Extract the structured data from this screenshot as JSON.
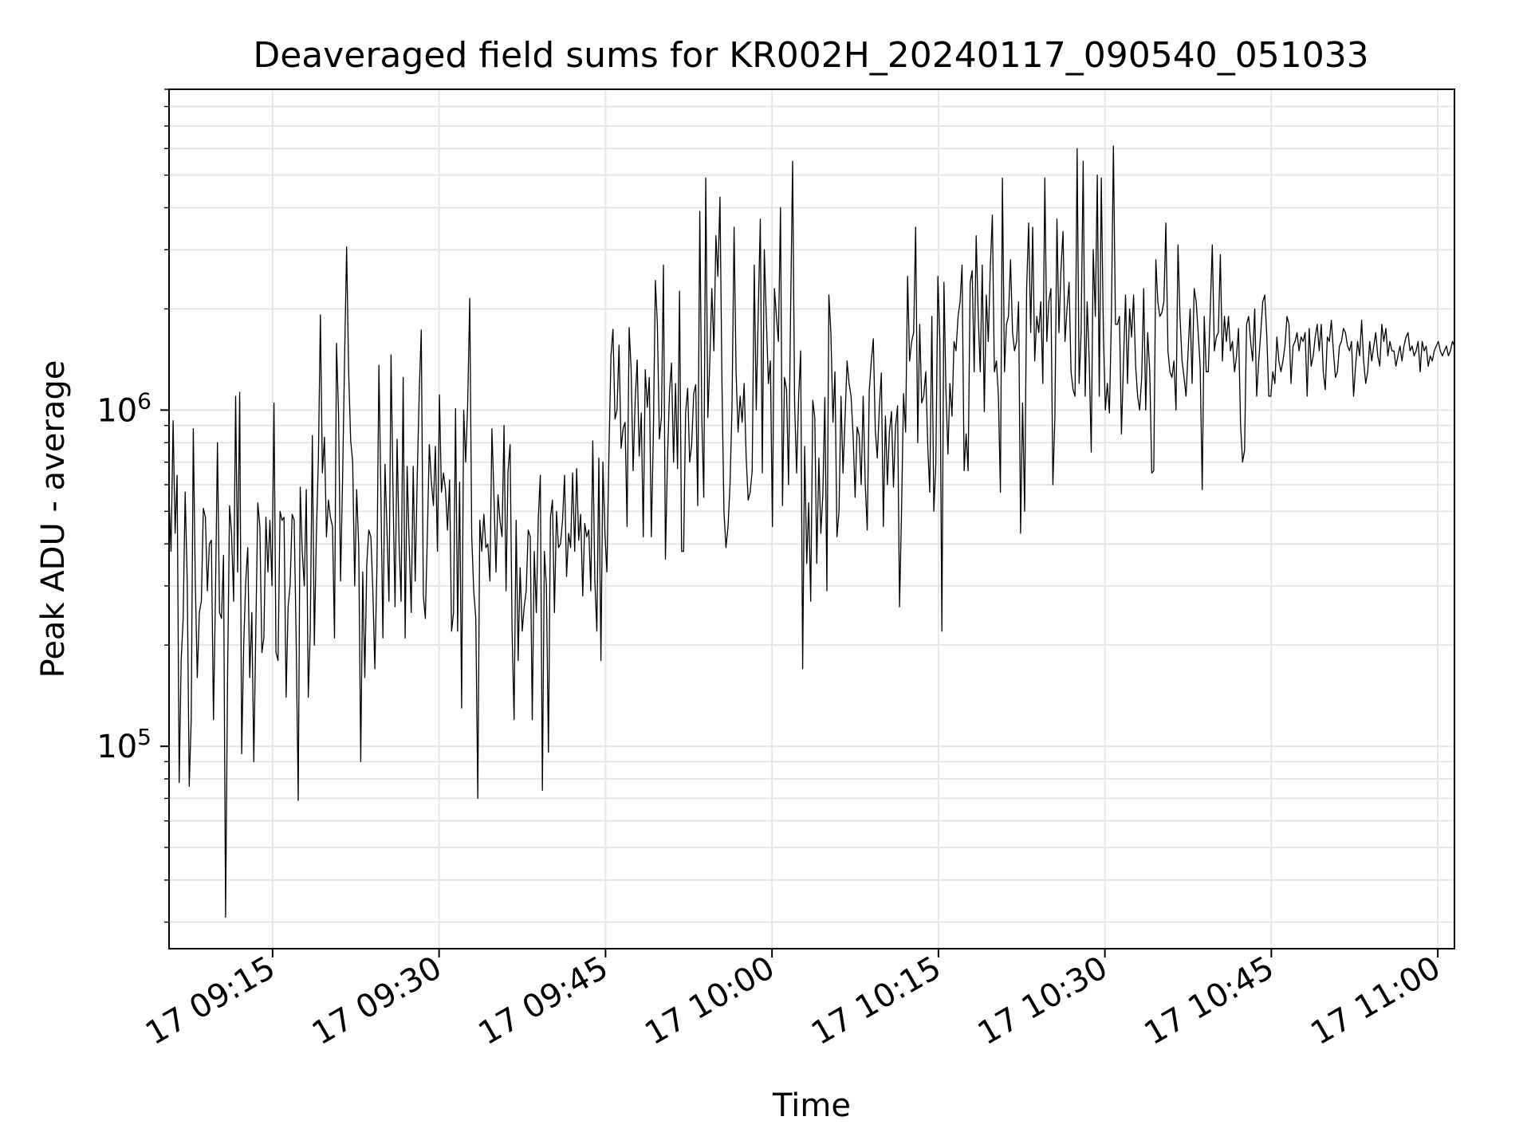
{
  "chart_data": {
    "type": "line",
    "title": "Deaveraged field sums for KR002H_20240117_090540_051033",
    "xlabel": "Time",
    "ylabel": "Peak ADU - average",
    "xscale": "time",
    "yscale": "log",
    "xlim": [
      "2024-01-17 09:05:40",
      "2024-01-17 11:01:30"
    ],
    "ylim": [
      25000,
      9000000
    ],
    "x_ticks": [
      "17 09:15",
      "17 09:30",
      "17 09:45",
      "17 10:00",
      "17 10:15",
      "17 10:30",
      "17 10:45",
      "17 11:00"
    ],
    "y_ticks": [
      {
        "value": 100000,
        "base": "10",
        "exp": "5"
      },
      {
        "value": 1000000,
        "base": "10",
        "exp": "6"
      }
    ],
    "grid": true,
    "line_color": "#000000",
    "series": [
      {
        "x_start": "2024-01-17 09:05:40",
        "x_end": "2024-01-17 11:01:30",
        "values": [
          550000,
          380000,
          930000,
          430000,
          640000,
          78000,
          180000,
          240000,
          570000,
          310000,
          76000,
          120000,
          880000,
          310000,
          160000,
          250000,
          270000,
          510000,
          480000,
          290000,
          400000,
          410000,
          120000,
          280000,
          800000,
          250000,
          240000,
          370000,
          31000,
          160000,
          520000,
          430000,
          270000,
          1100000,
          330000,
          1130000,
          95000,
          200000,
          310000,
          390000,
          160000,
          250000,
          90000,
          220000,
          530000,
          450000,
          190000,
          210000,
          480000,
          330000,
          470000,
          300000,
          1050000,
          190000,
          180000,
          500000,
          470000,
          480000,
          140000,
          260000,
          300000,
          490000,
          470000,
          210000,
          69000,
          590000,
          380000,
          300000,
          580000,
          140000,
          220000,
          840000,
          200000,
          420000,
          720000,
          1920000,
          650000,
          830000,
          420000,
          540000,
          480000,
          450000,
          210000,
          1580000,
          970000,
          310000,
          620000,
          1450000,
          3060000,
          1310000,
          810000,
          700000,
          300000,
          580000,
          390000,
          90000,
          330000,
          160000,
          350000,
          440000,
          420000,
          290000,
          170000,
          340000,
          1360000,
          550000,
          210000,
          690000,
          440000,
          270000,
          1460000,
          570000,
          260000,
          820000,
          400000,
          270000,
          1250000,
          210000,
          680000,
          400000,
          250000,
          680000,
          310000,
          640000,
          1140000,
          1730000,
          280000,
          240000,
          420000,
          790000,
          610000,
          520000,
          780000,
          380000,
          1110000,
          570000,
          650000,
          580000,
          440000,
          620000,
          220000,
          250000,
          1010000,
          220000,
          610000,
          130000,
          1000000,
          700000,
          1040000,
          2150000,
          420000,
          290000,
          240000,
          70000,
          470000,
          380000,
          490000,
          390000,
          400000,
          310000,
          880000,
          560000,
          330000,
          560000,
          470000,
          420000,
          900000,
          290000,
          660000,
          790000,
          220000,
          120000,
          470000,
          180000,
          340000,
          220000,
          260000,
          290000,
          440000,
          420000,
          120000,
          380000,
          250000,
          480000,
          640000,
          74000,
          380000,
          300000,
          96000,
          480000,
          540000,
          250000,
          500000,
          390000,
          400000,
          470000,
          640000,
          320000,
          430000,
          390000,
          650000,
          380000,
          670000,
          410000,
          490000,
          280000,
          460000,
          420000,
          440000,
          290000,
          810000,
          310000,
          220000,
          720000,
          180000,
          700000,
          430000,
          330000,
          750000,
          1450000,
          1740000,
          940000,
          1000000,
          1560000,
          770000,
          880000,
          920000,
          450000,
          1760000,
          1320000,
          660000,
          1070000,
          1410000,
          730000,
          980000,
          420000,
          1320000,
          1020000,
          1250000,
          420000,
          830000,
          2430000,
          1800000,
          820000,
          950000,
          2700000,
          360000,
          720000,
          1130000,
          1380000,
          700000,
          1200000,
          670000,
          2260000,
          380000,
          380000,
          980000,
          1160000,
          700000,
          790000,
          1120000,
          1190000,
          520000,
          3900000,
          950000,
          550000,
          4900000,
          950000,
          1400000,
          2300000,
          1500000,
          3300000,
          2500000,
          4300000,
          1200000,
          500000,
          390000,
          450000,
          600000,
          1020000,
          3500000,
          1300000,
          860000,
          1100000,
          920000,
          1200000,
          720000,
          540000,
          570000,
          660000,
          2700000,
          1000000,
          1950000,
          3700000,
          650000,
          3000000,
          1850000,
          1200000,
          1400000,
          450000,
          2300000,
          1900000,
          1600000,
          4000000,
          520000,
          1250000,
          1150000,
          600000,
          1900000,
          5500000,
          1050000,
          650000,
          1100000,
          1500000,
          170000,
          780000,
          350000,
          530000,
          270000,
          1070000,
          950000,
          350000,
          720000,
          430000,
          560000,
          1090000,
          290000,
          2200000,
          1700000,
          920000,
          1300000,
          420000,
          500000,
          1100000,
          650000,
          950000,
          1400000,
          1200000,
          1100000,
          840000,
          550000,
          890000,
          840000,
          600000,
          1100000,
          600000,
          440000,
          1140000,
          1400000,
          1630000,
          870000,
          720000,
          1020000,
          1290000,
          450000,
          960000,
          600000,
          860000,
          990000,
          590000,
          890000,
          1030000,
          260000,
          500000,
          1120000,
          860000,
          2500000,
          1400000,
          1600000,
          1700000,
          3500000,
          800000,
          1800000,
          1050000,
          1100000,
          1300000,
          780000,
          570000,
          1900000,
          500000,
          690000,
          2500000,
          1600000,
          220000,
          2400000,
          1130000,
          740000,
          1200000,
          960000,
          1600000,
          1500000,
          1900000,
          2100000,
          2700000,
          660000,
          850000,
          660000,
          2400000,
          2600000,
          1300000,
          3300000,
          1900000,
          1300000,
          2700000,
          990000,
          2200000,
          1600000,
          2700000,
          3800000,
          1300000,
          1400000,
          1100000,
          570000,
          4900000,
          1300000,
          1800000,
          1900000,
          2800000,
          1700000,
          1500000,
          1600000,
          2100000,
          430000,
          1050000,
          500000,
          2300000,
          3600000,
          1700000,
          3500000,
          1400000,
          1900000,
          1700000,
          2100000,
          1200000,
          4900000,
          1600000,
          2100000,
          2300000,
          600000,
          950000,
          3700000,
          1700000,
          2600000,
          3400000,
          1600000,
          2000000,
          2400000,
          1300000,
          1150000,
          1100000,
          6000000,
          1200000,
          1700000,
          5500000,
          1100000,
          2100000,
          1400000,
          750000,
          3000000,
          1900000,
          5000000,
          1100000,
          4900000,
          1700000,
          1000000,
          1200000,
          980000,
          1900000,
          6100000,
          1800000,
          1800000,
          1900000,
          850000,
          1400000,
          2200000,
          1200000,
          2000000,
          1650000,
          2200000,
          1350000,
          1100000,
          1000000,
          1250000,
          2300000,
          1000000,
          1700000,
          1300000,
          650000,
          660000,
          2800000,
          2100000,
          1900000,
          1950000,
          2100000,
          3600000,
          1500000,
          1300000,
          1250000,
          1400000,
          1000000,
          3100000,
          1900000,
          1400000,
          1250000,
          1100000,
          1500000,
          2000000,
          1200000,
          2300000,
          2100000,
          1700000,
          1350000,
          580000,
          1900000,
          1300000,
          1300000,
          2000000,
          3100000,
          1500000,
          1650000,
          1700000,
          2900000,
          1400000,
          1900000,
          1600000,
          1900000,
          1500000,
          1600000,
          1300000,
          1450000,
          1750000,
          900000,
          700000,
          760000,
          1800000,
          1900000,
          1600000,
          1400000,
          2000000,
          1100000,
          1400000,
          1700000,
          2100000,
          2200000,
          1650000,
          1100000,
          1100000,
          1300000,
          1200000,
          1650000,
          1400000,
          1300000,
          1400000,
          1550000,
          1900000,
          1800000,
          1200000,
          1550000,
          1600000,
          1700000,
          1500000,
          1650000,
          1600000,
          1700000,
          1100000,
          1750000,
          1350000,
          1450000,
          1650000,
          1800000,
          1500000,
          1800000,
          1300000,
          1150000,
          1650000,
          1600000,
          1850000,
          1500000,
          1250000,
          1300000,
          1550000,
          1600000,
          1750000,
          1700000,
          1550000,
          1500000,
          1600000,
          1100000,
          1350000,
          1600000,
          1450000,
          1850000,
          1400000,
          1200000,
          1300000,
          1600000,
          1400000,
          1550000,
          1700000,
          1450000,
          1350000,
          1800000,
          1600000,
          1750000,
          1450000,
          1600000,
          1500000,
          1500000,
          1350000,
          1450000,
          1550000,
          1400000,
          1550000,
          1650000,
          1700000,
          1500000,
          1550000,
          1450000,
          1500000,
          1600000,
          1300000,
          1600000,
          1500000,
          1550000,
          1350000,
          1450000,
          1400000,
          1500000,
          1550000,
          1600000,
          1500000,
          1450000,
          1500000,
          1550000,
          1450000,
          1500000,
          1600000,
          1550000
        ]
      }
    ]
  }
}
